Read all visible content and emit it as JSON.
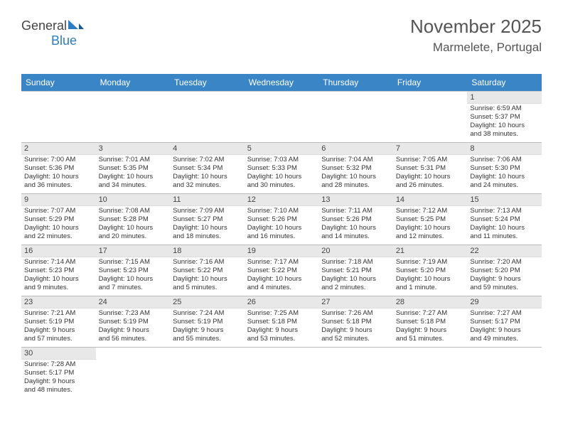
{
  "logo": {
    "text1": "General",
    "text2": "Blue"
  },
  "header": {
    "month": "November 2025",
    "location": "Marmelete, Portugal"
  },
  "colors": {
    "header_bg": "#3a85c6",
    "daynum_bg": "#e8e8e8",
    "border": "#bbb"
  },
  "weekdays": [
    "Sunday",
    "Monday",
    "Tuesday",
    "Wednesday",
    "Thursday",
    "Friday",
    "Saturday"
  ],
  "days": {
    "1": {
      "sunrise": "6:59 AM",
      "sunset": "5:37 PM",
      "dlh": "10",
      "dlm": "38"
    },
    "2": {
      "sunrise": "7:00 AM",
      "sunset": "5:36 PM",
      "dlh": "10",
      "dlm": "36"
    },
    "3": {
      "sunrise": "7:01 AM",
      "sunset": "5:35 PM",
      "dlh": "10",
      "dlm": "34"
    },
    "4": {
      "sunrise": "7:02 AM",
      "sunset": "5:34 PM",
      "dlh": "10",
      "dlm": "32"
    },
    "5": {
      "sunrise": "7:03 AM",
      "sunset": "5:33 PM",
      "dlh": "10",
      "dlm": "30"
    },
    "6": {
      "sunrise": "7:04 AM",
      "sunset": "5:32 PM",
      "dlh": "10",
      "dlm": "28"
    },
    "7": {
      "sunrise": "7:05 AM",
      "sunset": "5:31 PM",
      "dlh": "10",
      "dlm": "26"
    },
    "8": {
      "sunrise": "7:06 AM",
      "sunset": "5:30 PM",
      "dlh": "10",
      "dlm": "24"
    },
    "9": {
      "sunrise": "7:07 AM",
      "sunset": "5:29 PM",
      "dlh": "10",
      "dlm": "22"
    },
    "10": {
      "sunrise": "7:08 AM",
      "sunset": "5:28 PM",
      "dlh": "10",
      "dlm": "20"
    },
    "11": {
      "sunrise": "7:09 AM",
      "sunset": "5:27 PM",
      "dlh": "10",
      "dlm": "18"
    },
    "12": {
      "sunrise": "7:10 AM",
      "sunset": "5:26 PM",
      "dlh": "10",
      "dlm": "16"
    },
    "13": {
      "sunrise": "7:11 AM",
      "sunset": "5:26 PM",
      "dlh": "10",
      "dlm": "14"
    },
    "14": {
      "sunrise": "7:12 AM",
      "sunset": "5:25 PM",
      "dlh": "10",
      "dlm": "12"
    },
    "15": {
      "sunrise": "7:13 AM",
      "sunset": "5:24 PM",
      "dlh": "10",
      "dlm": "11"
    },
    "16": {
      "sunrise": "7:14 AM",
      "sunset": "5:23 PM",
      "dlh": "10",
      "dlm": "9"
    },
    "17": {
      "sunrise": "7:15 AM",
      "sunset": "5:23 PM",
      "dlh": "10",
      "dlm": "7"
    },
    "18": {
      "sunrise": "7:16 AM",
      "sunset": "5:22 PM",
      "dlh": "10",
      "dlm": "5"
    },
    "19": {
      "sunrise": "7:17 AM",
      "sunset": "5:22 PM",
      "dlh": "10",
      "dlm": "4"
    },
    "20": {
      "sunrise": "7:18 AM",
      "sunset": "5:21 PM",
      "dlh": "10",
      "dlm": "2"
    },
    "21": {
      "sunrise": "7:19 AM",
      "sunset": "5:20 PM",
      "dlh": "10",
      "dlm": "1",
      "singular": true
    },
    "22": {
      "sunrise": "7:20 AM",
      "sunset": "5:20 PM",
      "dlh": "9",
      "dlm": "59"
    },
    "23": {
      "sunrise": "7:21 AM",
      "sunset": "5:19 PM",
      "dlh": "9",
      "dlm": "57"
    },
    "24": {
      "sunrise": "7:23 AM",
      "sunset": "5:19 PM",
      "dlh": "9",
      "dlm": "56"
    },
    "25": {
      "sunrise": "7:24 AM",
      "sunset": "5:19 PM",
      "dlh": "9",
      "dlm": "55"
    },
    "26": {
      "sunrise": "7:25 AM",
      "sunset": "5:18 PM",
      "dlh": "9",
      "dlm": "53"
    },
    "27": {
      "sunrise": "7:26 AM",
      "sunset": "5:18 PM",
      "dlh": "9",
      "dlm": "52"
    },
    "28": {
      "sunrise": "7:27 AM",
      "sunset": "5:18 PM",
      "dlh": "9",
      "dlm": "51"
    },
    "29": {
      "sunrise": "7:27 AM",
      "sunset": "5:17 PM",
      "dlh": "9",
      "dlm": "49"
    },
    "30": {
      "sunrise": "7:28 AM",
      "sunset": "5:17 PM",
      "dlh": "9",
      "dlm": "48"
    }
  },
  "layout": [
    [
      null,
      null,
      null,
      null,
      null,
      null,
      "1"
    ],
    [
      "2",
      "3",
      "4",
      "5",
      "6",
      "7",
      "8"
    ],
    [
      "9",
      "10",
      "11",
      "12",
      "13",
      "14",
      "15"
    ],
    [
      "16",
      "17",
      "18",
      "19",
      "20",
      "21",
      "22"
    ],
    [
      "23",
      "24",
      "25",
      "26",
      "27",
      "28",
      "29"
    ],
    [
      "30",
      null,
      null,
      null,
      null,
      null,
      null
    ]
  ]
}
